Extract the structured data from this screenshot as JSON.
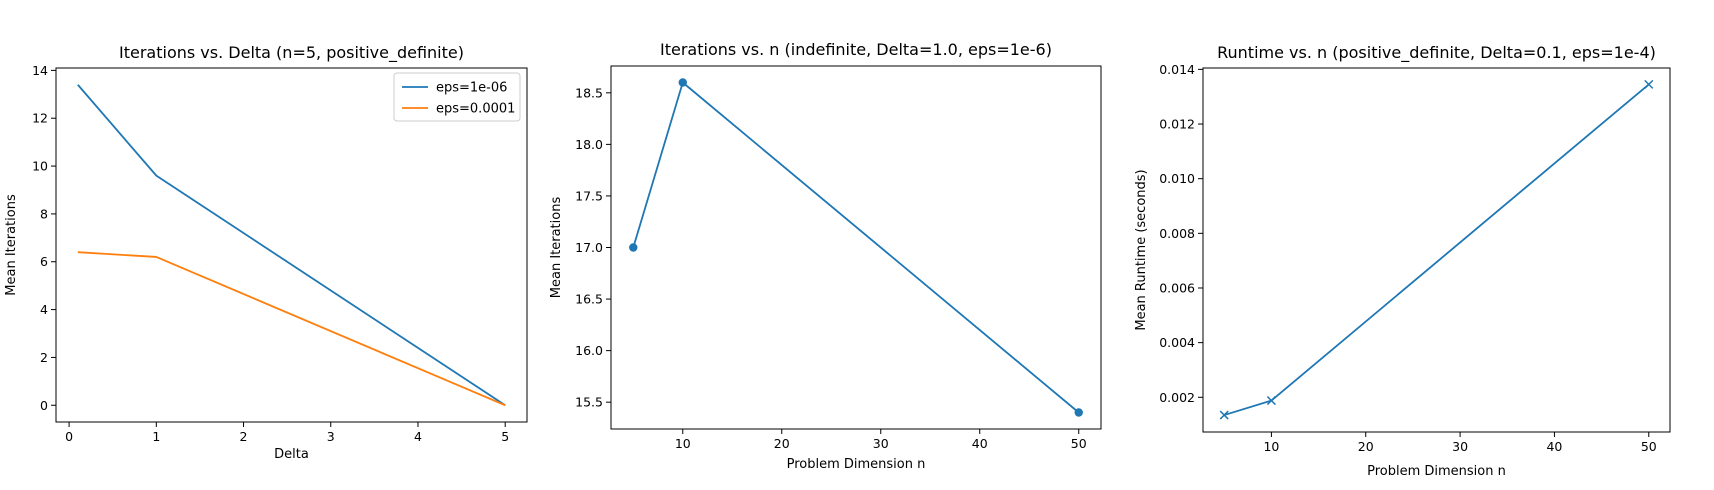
{
  "colors": {
    "blue": "#1f77b4",
    "orange": "#ff7f0e"
  },
  "chart_data": [
    {
      "type": "line",
      "title": "Iterations vs. Delta (n=5, positive_definite)",
      "xlabel": "Delta",
      "ylabel": "Mean Iterations",
      "xlim": [
        -0.15,
        5.25
      ],
      "ylim": [
        -0.7,
        14.1
      ],
      "xticks": [
        0,
        1,
        2,
        3,
        4,
        5
      ],
      "xtick_labels": [
        "0",
        "1",
        "2",
        "3",
        "4",
        "5"
      ],
      "yticks": [
        0,
        2,
        4,
        6,
        8,
        10,
        12,
        14
      ],
      "ytick_labels": [
        "0",
        "2",
        "4",
        "6",
        "8",
        "10",
        "12",
        "14"
      ],
      "grid": false,
      "legend": "top-right",
      "series": [
        {
          "name": "eps=1e-06",
          "color": "#1f77b4",
          "marker": "none",
          "x": [
            0.1,
            1,
            5
          ],
          "y": [
            13.4,
            9.6,
            0
          ]
        },
        {
          "name": "eps=0.0001",
          "color": "#ff7f0e",
          "marker": "none",
          "x": [
            0.1,
            1,
            5
          ],
          "y": [
            6.4,
            6.2,
            0
          ]
        }
      ]
    },
    {
      "type": "line",
      "title": "Iterations vs. n (indefinite, Delta=1.0, eps=1e-6)",
      "xlabel": "Problem Dimension n",
      "ylabel": "Mean Iterations",
      "xlim": [
        2.75,
        52.25
      ],
      "ylim": [
        15.24,
        18.76
      ],
      "xticks": [
        10,
        20,
        30,
        40,
        50
      ],
      "xtick_labels": [
        "10",
        "20",
        "30",
        "40",
        "50"
      ],
      "yticks": [
        15.5,
        16.0,
        16.5,
        17.0,
        17.5,
        18.0,
        18.5
      ],
      "ytick_labels": [
        "15.5",
        "16.0",
        "16.5",
        "17.0",
        "17.5",
        "18.0",
        "18.5"
      ],
      "grid": false,
      "series": [
        {
          "color": "#1f77b4",
          "marker": "circle",
          "x": [
            5,
            10,
            50
          ],
          "y": [
            17.0,
            18.6,
            15.4
          ]
        }
      ]
    },
    {
      "type": "line",
      "title": "Runtime vs. n (positive_definite, Delta=0.1, eps=1e-4)",
      "xlabel": "Problem Dimension n",
      "ylabel": "Mean Runtime (seconds)",
      "xlim": [
        2.75,
        52.25
      ],
      "ylim": [
        0.00073,
        0.01405
      ],
      "xticks": [
        10,
        20,
        30,
        40,
        50
      ],
      "xtick_labels": [
        "10",
        "20",
        "30",
        "40",
        "50"
      ],
      "yticks": [
        0.002,
        0.004,
        0.006,
        0.008,
        0.01,
        0.012,
        0.014
      ],
      "ytick_labels": [
        "0.002",
        "0.004",
        "0.006",
        "0.008",
        "0.010",
        "0.012",
        "0.014"
      ],
      "grid": false,
      "series": [
        {
          "color": "#1f77b4",
          "marker": "x",
          "x": [
            5,
            10,
            50
          ],
          "y": [
            0.00135,
            0.00188,
            0.01345
          ]
        }
      ]
    }
  ]
}
